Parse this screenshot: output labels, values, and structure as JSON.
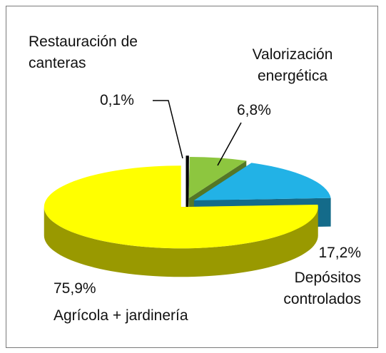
{
  "chart_data": {
    "type": "pie3d",
    "categories": [
      "Restauración de canteras",
      "Valorización energética",
      "Depósitos controlados",
      "Agrícola + jardinería"
    ],
    "values": [
      0.1,
      6.8,
      17.2,
      75.9
    ],
    "value_labels": [
      "0,1%",
      "6,8%",
      "17,2%",
      "75,9%"
    ],
    "colors": [
      "#000000",
      "#8dc63f",
      "#22b2e6",
      "#ffff00"
    ]
  }
}
